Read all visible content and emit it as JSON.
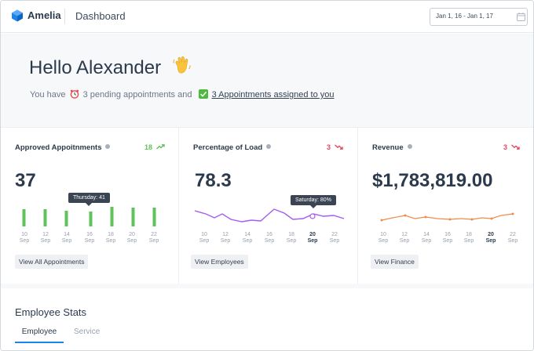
{
  "header": {
    "brand": "Amelia",
    "page_title": "Dashboard",
    "date_range": "Jan 1, 16 - Jan 1, 17",
    "brand_color": "#1a84ee"
  },
  "greeting": {
    "hello": "Hello Alexander",
    "you_have": "You have",
    "pending": "3 pending appointments and",
    "assigned_link": "3 Appointments assigned to you"
  },
  "cards": [
    {
      "title": "Approved Appoitnments",
      "trend_value": "18",
      "trend_dir": "up",
      "value": "37",
      "tooltip": "Thursday: 41",
      "button": "View All Appointments",
      "color": "#5fc35a",
      "tick_days": [
        "10",
        "12",
        "14",
        "16",
        "18",
        "20",
        "22"
      ],
      "tick_month": "Sep"
    },
    {
      "title": "Percentage of Load",
      "trend_value": "3",
      "trend_dir": "down",
      "value": "78.3",
      "tooltip": "Saturday: 80%",
      "button": "View Employees",
      "color": "#a45cf0",
      "tick_days": [
        "10",
        "12",
        "14",
        "16",
        "18",
        "20",
        "22"
      ],
      "tick_month": "Sep",
      "highlight_tick": "20"
    },
    {
      "title": "Revenue",
      "trend_value": "3",
      "trend_dir": "down",
      "value": "$1,783,819.00",
      "button": "View Finance",
      "color": "#f08c4a",
      "tick_days": [
        "10",
        "12",
        "14",
        "16",
        "18",
        "20",
        "22"
      ],
      "tick_month": "Sep",
      "highlight_tick": "20"
    }
  ],
  "employee_stats": {
    "title": "Employee Stats",
    "tabs": [
      "Employee",
      "Service"
    ]
  }
}
